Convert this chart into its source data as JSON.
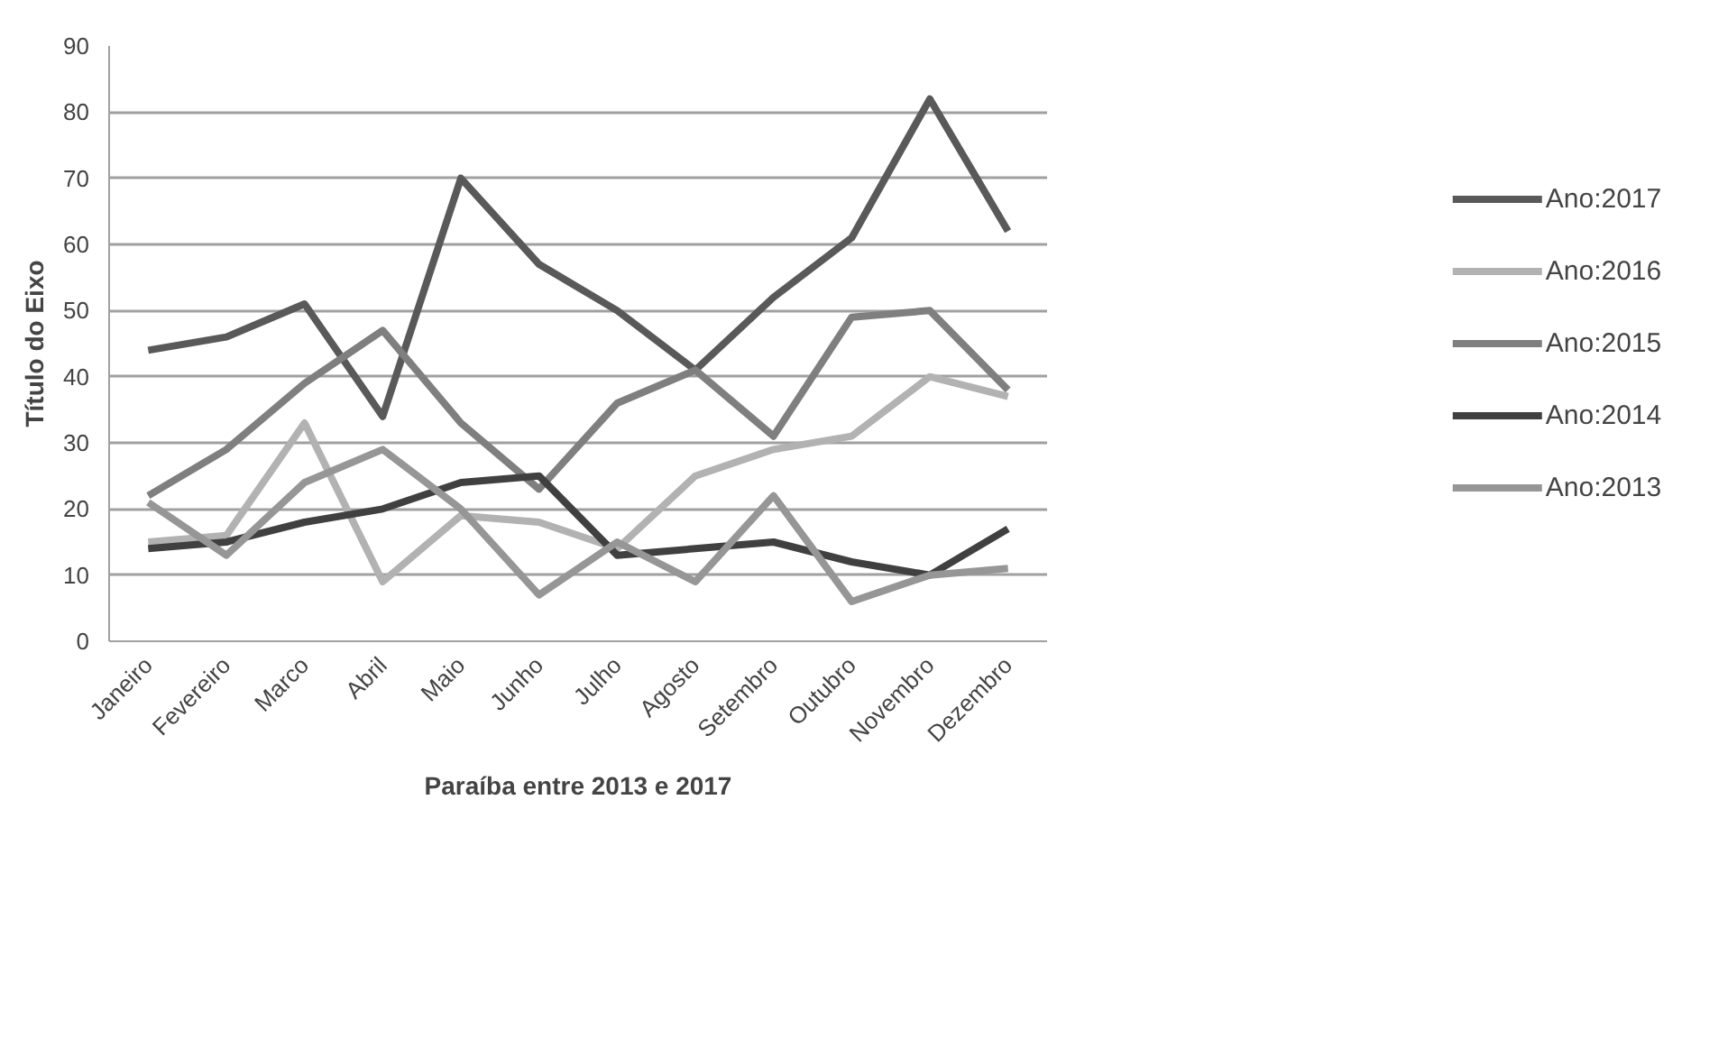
{
  "chart_data": {
    "type": "line",
    "xlabel": "Paraíba entre 2013 e 2017",
    "ylabel": "Título do Eixo",
    "categories": [
      "Janeiro",
      "Fevereiro",
      "Marco",
      "Abril",
      "Maio",
      "Junho",
      "Julho",
      "Agosto",
      "Setembro",
      "Outubro",
      "Novembro",
      "Dezembro"
    ],
    "series": [
      {
        "name": "Ano:2017",
        "color": "#595959",
        "values": [
          44,
          46,
          51,
          34,
          70,
          57,
          50,
          41,
          52,
          61,
          82,
          62
        ]
      },
      {
        "name": "Ano:2016",
        "color": "#b2b2b2",
        "values": [
          15,
          16,
          33,
          9,
          19,
          18,
          14,
          25,
          29,
          31,
          40,
          37
        ]
      },
      {
        "name": "Ano:2015",
        "color": "#7f7f7f",
        "values": [
          22,
          29,
          39,
          47,
          33,
          23,
          36,
          41,
          31,
          49,
          50,
          38
        ]
      },
      {
        "name": "Ano:2014",
        "color": "#404040",
        "values": [
          14,
          15,
          18,
          20,
          24,
          25,
          13,
          14,
          15,
          12,
          10,
          17
        ]
      },
      {
        "name": "Ano:2013",
        "color": "#969696",
        "values": [
          21,
          13,
          24,
          29,
          20,
          7,
          15,
          9,
          22,
          6,
          10,
          11
        ]
      }
    ],
    "ylim": [
      0,
      90
    ],
    "yticks": [
      0,
      10,
      20,
      30,
      40,
      50,
      60,
      70,
      80,
      90
    ],
    "grid": "y",
    "legend": "right",
    "marker": "none",
    "line_style": "solid"
  }
}
